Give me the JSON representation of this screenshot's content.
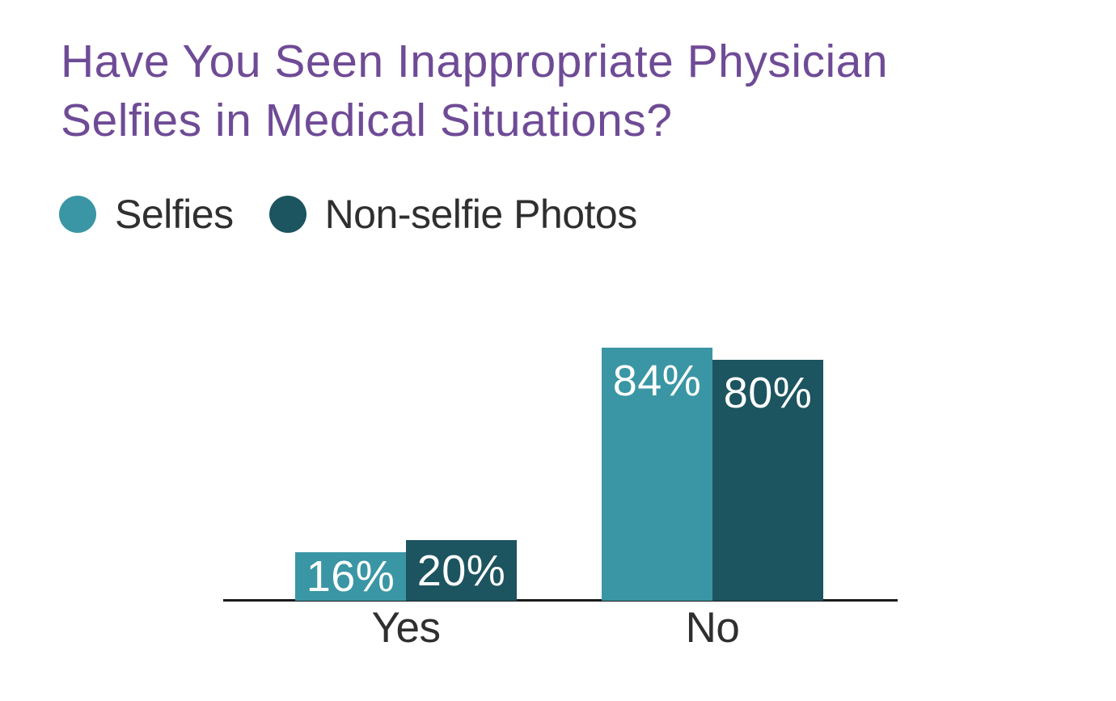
{
  "header": {
    "title_lines": [
      "Have You Seen Inappropriate Physician",
      "Selfies in Medical Situations?"
    ]
  },
  "legend": {
    "items": [
      {
        "label": "Selfies",
        "color": "#3a96a4"
      },
      {
        "label": "Non-selfie Photos",
        "color": "#1c5460"
      }
    ]
  },
  "chart_data": {
    "type": "bar",
    "title": "Have You Seen Inappropriate Physician Selfies in Medical Situations?",
    "categories": [
      "Yes",
      "No"
    ],
    "series": [
      {
        "name": "Selfies",
        "color": "#3a96a4",
        "values": [
          16,
          84
        ],
        "labels": [
          "16%",
          "84%"
        ]
      },
      {
        "name": "Non-selfie Photos",
        "color": "#1c5460",
        "values": [
          20,
          80
        ],
        "labels": [
          "20%",
          "80%"
        ]
      }
    ],
    "value_format": "percent",
    "xlabel": "",
    "ylabel": "",
    "ylim": [
      0,
      100
    ],
    "grid": false,
    "y_axis_visible": false,
    "legend_position": "top-left"
  },
  "colors": {
    "title": "#6f4b96",
    "text": "#2f2f2f",
    "axis_line": "#1a1a1a",
    "bar_label": "#ffffff",
    "background": "#ffffff"
  }
}
